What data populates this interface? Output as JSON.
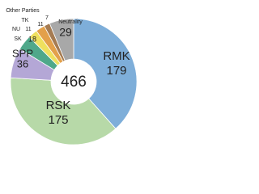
{
  "chart_data": {
    "type": "donut",
    "categories": [
      "RMK",
      "RSK",
      "SPP",
      "SK",
      "NU",
      "TK",
      "Other Parties",
      "Neutrality"
    ],
    "values": [
      179,
      175,
      36,
      18,
      11,
      11,
      7,
      29
    ],
    "colors": [
      "#7eaed9",
      "#b7d9a8",
      "#b4a7d6",
      "#4fa88a",
      "#efe05e",
      "#e3a04a",
      "#a57b52",
      "#a8a8a8"
    ],
    "total": 466
  }
}
